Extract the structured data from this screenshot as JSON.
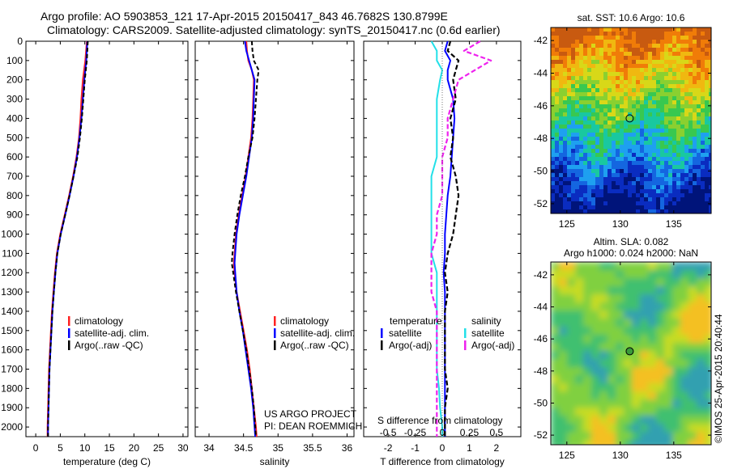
{
  "header": {
    "line1": "Argo profile: AO 5903853_121 17-Apr-2015 20150417_843 46.7682S 130.8799E",
    "line2": "Climatology: CARS2009. Satellite-adjusted climatology: synTS_20150417.nc (0.6d earlier)"
  },
  "colors": {
    "climatology": "#ff2222",
    "satellite": "#0000ff",
    "argo": "#000000",
    "s_satellite": "#22e0e8",
    "s_argo": "#ee22ee"
  },
  "depth_axis": {
    "ylim": [
      0,
      2050
    ],
    "ticks": [
      "0",
      "100",
      "200",
      "300",
      "400",
      "500",
      "600",
      "700",
      "800",
      "900",
      "1000",
      "1100",
      "1200",
      "1300",
      "1400",
      "1500",
      "1600",
      "1700",
      "1800",
      "1900",
      "2000"
    ]
  },
  "chart_data": [
    {
      "id": "temperature",
      "type": "line",
      "xlabel": "temperature (deg C)",
      "xlim": [
        -2,
        31
      ],
      "xticks": [
        0,
        5,
        10,
        15,
        20,
        25,
        30
      ],
      "xtick_labels": [
        "0",
        "5",
        "10",
        "15",
        "20",
        "25",
        "30"
      ],
      "legend": [
        "climatology",
        "satellite-adj. clim.",
        "Argo(..raw -QC)"
      ],
      "depth": [
        0,
        100,
        200,
        300,
        400,
        500,
        600,
        700,
        800,
        900,
        1000,
        1100,
        1200,
        1300,
        1400,
        1500,
        1600,
        1700,
        1800,
        1900,
        2000,
        2050
      ],
      "series": [
        {
          "name": "climatology",
          "values": [
            10.4,
            10.1,
            9.6,
            9.3,
            9.1,
            8.8,
            8.3,
            7.6,
            6.8,
            5.9,
            5.0,
            4.3,
            3.9,
            3.6,
            3.3,
            3.1,
            2.9,
            2.7,
            2.6,
            2.5,
            2.4,
            2.4
          ]
        },
        {
          "name": "satellite",
          "values": [
            10.5,
            10.3,
            9.9,
            9.6,
            9.3,
            8.9,
            8.4,
            7.7,
            6.9,
            6.0,
            5.1,
            4.4,
            4.0,
            3.7,
            3.4,
            3.2,
            3.0,
            2.8,
            2.7,
            2.6,
            2.5,
            2.5
          ]
        },
        {
          "name": "argo",
          "values": [
            10.6,
            10.4,
            10.0,
            9.7,
            9.4,
            9.0,
            8.5,
            7.7,
            6.9,
            6.0,
            5.1,
            4.4,
            4.0,
            3.7,
            3.4,
            3.2,
            3.0,
            2.8,
            2.7,
            2.6,
            2.5,
            2.5
          ]
        }
      ]
    },
    {
      "id": "salinity",
      "type": "line",
      "xlabel": "salinity",
      "xlim": [
        33.8,
        36.1
      ],
      "xticks": [
        34,
        34.5,
        35,
        35.5,
        36
      ],
      "xtick_labels": [
        "34",
        "34.5",
        "35",
        "35.5",
        "36"
      ],
      "legend": [
        "climatology",
        "satellite-adj. clim.",
        "Argo(..raw -QC)"
      ],
      "annotation": [
        "US ARGO PROJECT",
        "PI: DEAN ROEMMICH"
      ],
      "depth": [
        0,
        50,
        100,
        150,
        200,
        300,
        400,
        500,
        600,
        700,
        800,
        900,
        1000,
        1100,
        1150,
        1200,
        1300,
        1400,
        1500,
        1600,
        1700,
        1800,
        1900,
        2000,
        2050
      ],
      "series": [
        {
          "name": "climatology",
          "values": [
            34.54,
            34.55,
            34.57,
            34.62,
            34.65,
            34.64,
            34.63,
            34.61,
            34.57,
            34.53,
            34.48,
            34.43,
            34.39,
            34.37,
            34.36,
            34.37,
            34.4,
            34.45,
            34.5,
            34.55,
            34.59,
            34.62,
            34.65,
            34.68,
            34.69
          ]
        },
        {
          "name": "satellite",
          "values": [
            34.52,
            34.54,
            34.58,
            34.62,
            34.66,
            34.65,
            34.64,
            34.62,
            34.58,
            34.54,
            34.49,
            34.44,
            34.4,
            34.38,
            34.37,
            34.38,
            34.4,
            34.44,
            34.49,
            34.53,
            34.57,
            34.61,
            34.64,
            34.66,
            34.67
          ]
        },
        {
          "name": "argo",
          "values": [
            34.62,
            34.63,
            34.65,
            34.72,
            34.7,
            34.68,
            34.66,
            34.63,
            34.57,
            34.52,
            34.46,
            34.41,
            34.37,
            34.34,
            34.33,
            34.35,
            34.39,
            34.44,
            34.49,
            34.54,
            34.58,
            34.62,
            34.65,
            34.67,
            34.68
          ]
        }
      ]
    },
    {
      "id": "difference",
      "type": "line",
      "xlabel": "T difference from climatology",
      "top_xlabel": "S difference from climatology",
      "xlim": [
        -2.9,
        2.9
      ],
      "xticks": [
        -2,
        -1,
        0,
        1,
        2
      ],
      "xtick_labels": [
        "-2",
        "-1",
        "0",
        "1",
        "2"
      ],
      "top_ticks": [
        -0.5,
        -0.25,
        0,
        0.25,
        0.5
      ],
      "top_tick_labels": [
        "-0.5",
        "-0.25",
        "0",
        "0.25",
        "0.5"
      ],
      "legend_temperature_title": "temperature",
      "legend_salinity_title": "salinity",
      "legend_temperature": [
        "satellite",
        "Argo(-adj)"
      ],
      "legend_salinity": [
        "satellite",
        "Argo(-adj)"
      ],
      "depth": [
        0,
        50,
        100,
        150,
        200,
        300,
        400,
        500,
        600,
        700,
        800,
        900,
        1000,
        1100,
        1200,
        1300,
        1400,
        1500,
        1600,
        1700,
        1800,
        1900,
        2000,
        2050
      ],
      "series": [
        {
          "name": "T satellite",
          "values": [
            0.2,
            0.1,
            0.3,
            0.2,
            0.2,
            0.4,
            0.45,
            0.4,
            0.35,
            0.3,
            0.2,
            0.15,
            0.1,
            0.1,
            0.05,
            0.1,
            0.1,
            0.1,
            0.1,
            0.1,
            0.1,
            0.1,
            0.1,
            0.1
          ]
        },
        {
          "name": "T argo",
          "values": [
            0.3,
            0.2,
            0.6,
            0.5,
            0.4,
            0.5,
            0.3,
            0.4,
            0.3,
            0.5,
            0.6,
            0.5,
            0.4,
            0.2,
            0.1,
            0.2,
            0.1,
            0.1,
            0.1,
            0.1,
            0.2,
            0.1,
            0.1,
            0.1
          ]
        },
        {
          "name": "S satellite",
          "values": [
            -0.1,
            -0.05,
            -0.05,
            0.0,
            -0.02,
            -0.05,
            -0.05,
            -0.05,
            -0.05,
            -0.1,
            -0.1,
            -0.1,
            -0.1,
            -0.1,
            -0.05,
            -0.05,
            -0.05,
            -0.05,
            -0.05,
            -0.05,
            -0.03,
            -0.02,
            0.0,
            0.0
          ]
        },
        {
          "name": "S argo",
          "values": [
            0.35,
            0.2,
            0.45,
            0.3,
            0.15,
            0.1,
            0.05,
            0.05,
            0.0,
            0.0,
            0.0,
            -0.05,
            -0.05,
            -0.1,
            -0.1,
            -0.1,
            -0.05,
            -0.05,
            -0.05,
            -0.05,
            -0.05,
            -0.05,
            -0.05,
            -0.05
          ]
        }
      ]
    },
    {
      "id": "sst_map",
      "type": "heatmap",
      "title": "sat. SST: 10.6  Argo: 10.6",
      "xticks": [
        125,
        130,
        135
      ],
      "xtick_labels": [
        "125",
        "130",
        "135"
      ],
      "yticks": [
        -42,
        -44,
        -46,
        -48,
        -50,
        -52
      ],
      "ytick_labels": [
        "-42",
        "-44",
        "-46",
        "-48",
        "-50",
        "-52"
      ],
      "xlim": [
        123.5,
        138.5
      ],
      "ylim": [
        -52.6,
        -41.2
      ],
      "marker": [
        130.88,
        -46.77
      ]
    },
    {
      "id": "sla_map",
      "type": "heatmap",
      "title_line1": "Altim. SLA: 0.082",
      "title_line2": "Argo h1000: 0.024 h2000: NaN",
      "xticks": [
        125,
        130,
        135
      ],
      "xtick_labels": [
        "125",
        "130",
        "135"
      ],
      "yticks": [
        -42,
        -44,
        -46,
        -48,
        -50,
        -52
      ],
      "ytick_labels": [
        "-42",
        "-44",
        "-46",
        "-48",
        "-50",
        "-52"
      ],
      "xlim": [
        123.5,
        138.5
      ],
      "ylim": [
        -52.6,
        -41.2
      ],
      "marker": [
        130.88,
        -46.77
      ]
    }
  ],
  "footer": {
    "stamp": "©IMOS 25-Apr-2015 20:40:44"
  }
}
